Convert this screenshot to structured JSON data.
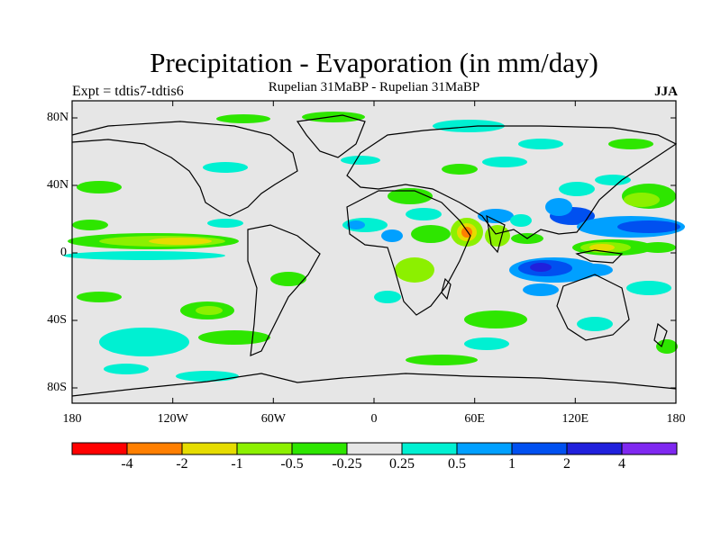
{
  "map": {
    "title": "Precipitation - Evaporation (in mm/day)",
    "subtitle": "Rupelian  31MaBP - Rupelian  31MaBP",
    "experiment": "Expt = tdtis7-tdtis6",
    "season": "JJA",
    "y_ticks": [
      "80N",
      "40N",
      "0",
      "40S",
      "80S"
    ],
    "x_ticks": [
      "180",
      "120W",
      "60W",
      "0",
      "60E",
      "120E",
      "180"
    ]
  },
  "colorbar": {
    "colors": [
      "#ff0000",
      "#ff7f00",
      "#e6dc00",
      "#8cf000",
      "#2ee600",
      "#e6e6e6",
      "#00f0d2",
      "#00a0ff",
      "#0050f0",
      "#2020dc",
      "#7f28f0"
    ],
    "labels": [
      "-4",
      "-2",
      "-1",
      "-0.5",
      "-0.25",
      "0.25",
      "0.5",
      "1",
      "2",
      "4"
    ]
  },
  "palette": {
    "background": "#e6e6e6",
    "coastline": "#000000"
  }
}
